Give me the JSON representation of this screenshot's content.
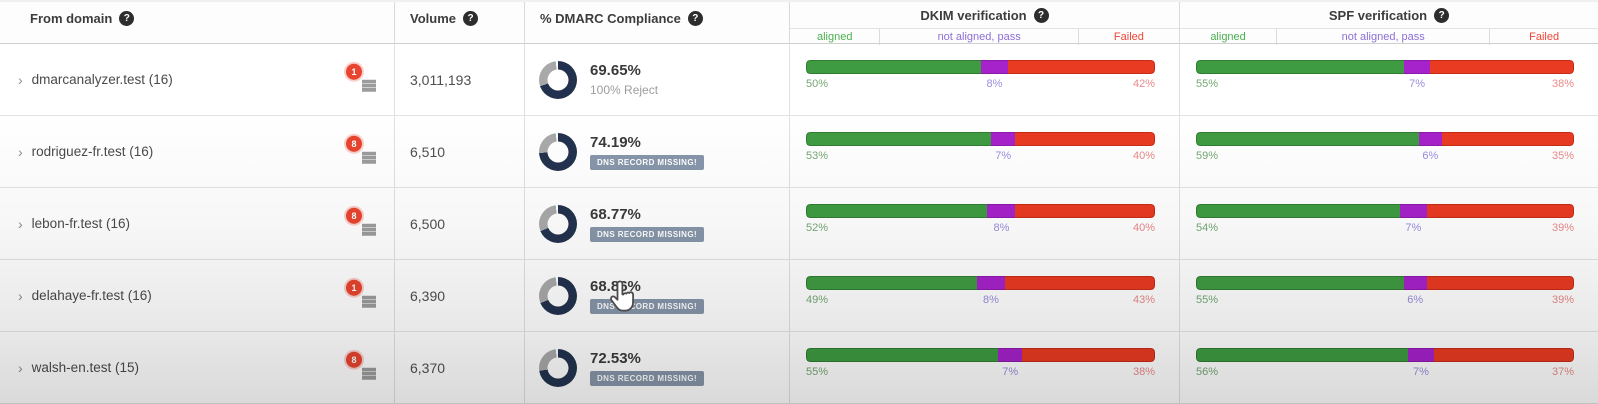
{
  "header": {
    "from_domain": "From domain",
    "volume": "Volume",
    "dmarc": "% DMARC Compliance",
    "dkim": "DKIM verification",
    "spf": "SPF verification",
    "subcolumns": {
      "aligned": "aligned",
      "not_aligned": "not aligned, pass",
      "failed": "Failed"
    }
  },
  "icons": {
    "help": "?",
    "expand": "›"
  },
  "colors": {
    "bar_aligned": "#3f9b42",
    "bar_not_aligned": "#a622cb",
    "bar_failed": "#e93a22",
    "label_aligned": "#74a874",
    "label_not_aligned": "#9a8ede",
    "label_failed": "#e98a8a",
    "donut_fill": "#22324e",
    "donut_rest": "#a9a9a9",
    "alert_badge": "#e8442f",
    "dns_badge_bg": "#8796aa"
  },
  "rows": [
    {
      "domain": "dmarcanalyzer.test (16)",
      "alert_count": "1",
      "volume": "3,011,193",
      "compliance_pct": "69.65%",
      "compliance_value": 69.65,
      "note": "100% Reject",
      "note_is_badge": false,
      "dkim": {
        "aligned": 50,
        "not_aligned": 8,
        "failed": 42
      },
      "spf": {
        "aligned": 55,
        "not_aligned": 7,
        "failed": 38
      }
    },
    {
      "domain": "rodriguez-fr.test (16)",
      "alert_count": "8",
      "volume": "6,510",
      "compliance_pct": "74.19%",
      "compliance_value": 74.19,
      "note": "DNS RECORD MISSING!",
      "note_is_badge": true,
      "dkim": {
        "aligned": 53,
        "not_aligned": 7,
        "failed": 40
      },
      "spf": {
        "aligned": 59,
        "not_aligned": 6,
        "failed": 35
      }
    },
    {
      "domain": "lebon-fr.test (16)",
      "alert_count": "8",
      "volume": "6,500",
      "compliance_pct": "68.77%",
      "compliance_value": 68.77,
      "note": "DNS RECORD MISSING!",
      "note_is_badge": true,
      "dkim": {
        "aligned": 52,
        "not_aligned": 8,
        "failed": 40
      },
      "spf": {
        "aligned": 54,
        "not_aligned": 7,
        "failed": 39
      }
    },
    {
      "domain": "delahaye-fr.test (16)",
      "alert_count": "1",
      "volume": "6,390",
      "compliance_pct": "68.86%",
      "compliance_value": 68.86,
      "note": "DNS RECORD MISSING!",
      "note_is_badge": true,
      "dkim": {
        "aligned": 49,
        "not_aligned": 8,
        "failed": 43
      },
      "spf": {
        "aligned": 55,
        "not_aligned": 6,
        "failed": 39
      }
    },
    {
      "domain": "walsh-en.test (15)",
      "alert_count": "8",
      "volume": "6,370",
      "compliance_pct": "72.53%",
      "compliance_value": 72.53,
      "note": "DNS RECORD MISSING!",
      "note_is_badge": true,
      "dkim": {
        "aligned": 55,
        "not_aligned": 7,
        "failed": 38
      },
      "spf": {
        "aligned": 56,
        "not_aligned": 7,
        "failed": 37
      }
    }
  ]
}
